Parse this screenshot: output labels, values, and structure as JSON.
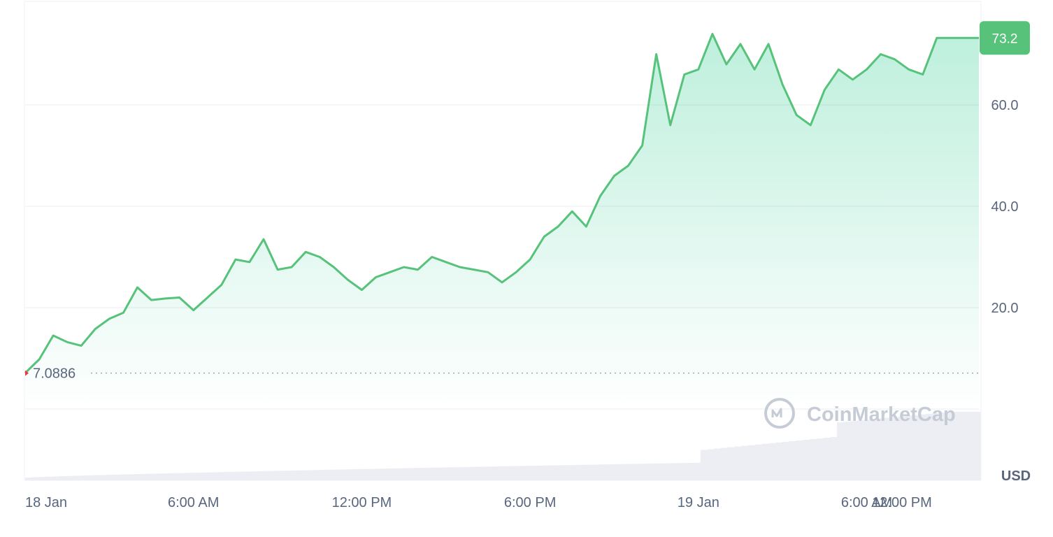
{
  "chart_data": {
    "type": "area",
    "currency_label": "USD",
    "watermark": "CoinMarketCap",
    "baseline_value": 7.0886,
    "baseline_label": "7.0886",
    "current_value": 73.2,
    "current_label": "73.2",
    "ylim": [
      0,
      80
    ],
    "yticks": [
      {
        "value": 20,
        "label": "20.0"
      },
      {
        "value": 40,
        "label": "40.0"
      },
      {
        "value": 60,
        "label": "60.0"
      }
    ],
    "xlim": [
      0,
      34
    ],
    "xticks": [
      {
        "value": 0,
        "label": "18 Jan"
      },
      {
        "value": 6,
        "label": "6:00 AM"
      },
      {
        "value": 12,
        "label": "12:00 PM"
      },
      {
        "value": 18,
        "label": "6:00 PM"
      },
      {
        "value": 24,
        "label": "19 Jan"
      },
      {
        "value": 30,
        "label": "6:00 AM"
      },
      {
        "value": 36,
        "label": "12:00 PM"
      }
    ],
    "colors": {
      "line": "#56c27a",
      "fill": "#16c784",
      "grid": "#eef0f3",
      "baseline": "#9aa1ab",
      "badge": "#56c27a",
      "volume": "#eceef3",
      "baseline_marker": "#ea3943"
    },
    "series": [
      {
        "x": [
          0,
          0.5,
          1,
          1.5,
          2,
          2.5,
          3,
          3.5,
          4,
          4.5,
          5,
          5.5,
          6,
          6.5,
          7,
          7.5,
          8,
          8.5,
          9,
          9.5,
          10,
          10.5,
          11,
          11.5,
          12,
          12.5,
          13,
          13.5,
          14,
          14.5,
          15,
          15.5,
          16,
          16.5,
          17,
          17.5,
          18,
          18.5,
          19,
          19.5,
          20,
          20.5,
          21,
          21.5,
          22,
          22.5,
          23,
          23.5,
          24,
          24.5,
          25,
          25.5,
          26,
          26.5,
          27,
          27.5,
          28,
          28.5,
          29,
          29.5,
          30,
          30.5,
          31,
          31.5,
          32,
          32.5,
          33,
          33.5,
          34
        ],
        "y": [
          7.1,
          9.8,
          14.5,
          13.2,
          12.5,
          15.8,
          17.8,
          19.0,
          24.0,
          21.5,
          21.8,
          22.0,
          19.5,
          22.0,
          24.5,
          29.5,
          29.0,
          33.5,
          27.5,
          28.0,
          31.0,
          30.0,
          28.0,
          25.5,
          23.5,
          26.0,
          27.0,
          28.0,
          27.5,
          30.0,
          29.0,
          28.0,
          27.5,
          27.0,
          25.0,
          27.0,
          29.5,
          34.0,
          36.0,
          39.0,
          36.0,
          42.0,
          46.0,
          48.0,
          52.0,
          70.0,
          56.0,
          66.0,
          67.0,
          74.0,
          68.0,
          72.0,
          67.0,
          72.0,
          64.0,
          58.0,
          56.0,
          63.0,
          67.0,
          65.0,
          67.0,
          70.0,
          69.0,
          67.0,
          66.0,
          73.2,
          73.2,
          73.2,
          73.2
        ]
      }
    ],
    "volume_note": "gray volume bars (no scale shown)"
  }
}
